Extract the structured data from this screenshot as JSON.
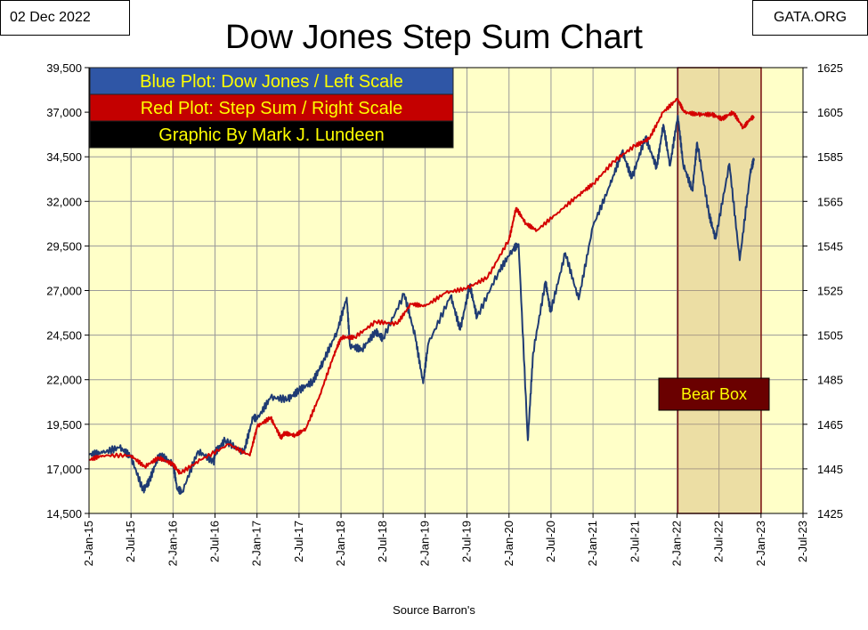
{
  "date_label": "02 Dec 2022",
  "site_label": "GATA.ORG",
  "chart_data": {
    "type": "line",
    "title": "Dow Jones Step Sum Chart",
    "source": "Source Barron's",
    "legend": [
      {
        "text": "Blue Plot: Dow Jones / Left Scale",
        "box": "#2f56a6",
        "fg": "#ffff00"
      },
      {
        "text": "Red Plot: Step Sum / Right Scale",
        "box": "#c40000",
        "fg": "#ffff00"
      },
      {
        "text": "Graphic By Mark J. Lundeen",
        "box": "#000000",
        "fg": "#ffff00"
      }
    ],
    "annotation": "Bear Box",
    "bear_box_range": [
      "2022-01-04",
      "2023-01-01"
    ],
    "background_color": "#ffffc8",
    "y_left": {
      "min": 14500,
      "max": 39500,
      "ticks": [
        "14,500",
        "17,000",
        "19,500",
        "22,000",
        "24,500",
        "27,000",
        "29,500",
        "32,000",
        "34,500",
        "37,000",
        "39,500"
      ]
    },
    "y_right": {
      "min": 1425,
      "max": 1625,
      "ticks": [
        "1425",
        "1445",
        "1465",
        "1485",
        "1505",
        "1525",
        "1545",
        "1565",
        "1585",
        "1605",
        "1625"
      ]
    },
    "x_ticks": [
      "2-Jan-15",
      "2-Jul-15",
      "2-Jan-16",
      "2-Jul-16",
      "2-Jan-17",
      "2-Jul-17",
      "2-Jan-18",
      "2-Jul-18",
      "2-Jan-19",
      "2-Jul-19",
      "2-Jan-20",
      "2-Jul-20",
      "2-Jan-21",
      "2-Jul-21",
      "2-Jan-22",
      "2-Jul-22",
      "2-Jan-23",
      "2-Jul-23"
    ],
    "grid": true,
    "series": [
      {
        "name": "Dow Jones",
        "axis": "left",
        "color": "#1f3b73",
        "points": [
          [
            "2015-01-02",
            17800
          ],
          [
            "2015-03-01",
            17900
          ],
          [
            "2015-05-15",
            18200
          ],
          [
            "2015-07-02",
            17700
          ],
          [
            "2015-08-25",
            15800
          ],
          [
            "2015-09-20",
            16300
          ],
          [
            "2015-11-03",
            17800
          ],
          [
            "2016-01-02",
            17300
          ],
          [
            "2016-01-20",
            15900
          ],
          [
            "2016-02-11",
            15700
          ],
          [
            "2016-04-20",
            18000
          ],
          [
            "2016-06-27",
            17400
          ],
          [
            "2016-07-02",
            17900
          ],
          [
            "2016-08-15",
            18600
          ],
          [
            "2016-11-04",
            17900
          ],
          [
            "2016-12-15",
            19900
          ],
          [
            "2017-01-02",
            19800
          ],
          [
            "2017-03-01",
            21000
          ],
          [
            "2017-05-15",
            20900
          ],
          [
            "2017-07-02",
            21400
          ],
          [
            "2017-09-01",
            21900
          ],
          [
            "2017-10-15",
            23000
          ],
          [
            "2017-12-15",
            24700
          ],
          [
            "2018-01-26",
            26600
          ],
          [
            "2018-02-09",
            23900
          ],
          [
            "2018-04-02",
            23700
          ],
          [
            "2018-06-01",
            24700
          ],
          [
            "2018-07-02",
            24300
          ],
          [
            "2018-10-03",
            26800
          ],
          [
            "2018-11-20",
            24400
          ],
          [
            "2018-12-24",
            21800
          ],
          [
            "2019-01-15",
            24000
          ],
          [
            "2019-04-23",
            26700
          ],
          [
            "2019-06-03",
            24800
          ],
          [
            "2019-07-15",
            27300
          ],
          [
            "2019-08-15",
            25500
          ],
          [
            "2019-11-15",
            28000
          ],
          [
            "2020-01-17",
            29300
          ],
          [
            "2020-02-12",
            29600
          ],
          [
            "2020-03-23",
            18600
          ],
          [
            "2020-04-15",
            23500
          ],
          [
            "2020-06-08",
            27500
          ],
          [
            "2020-06-30",
            25800
          ],
          [
            "2020-09-02",
            29100
          ],
          [
            "2020-10-30",
            26500
          ],
          [
            "2020-12-31",
            30600
          ],
          [
            "2021-03-15",
            32900
          ],
          [
            "2021-05-07",
            34800
          ],
          [
            "2021-06-18",
            33300
          ],
          [
            "2021-08-16",
            35600
          ],
          [
            "2021-10-04",
            33900
          ],
          [
            "2021-11-02",
            36300
          ],
          [
            "2021-12-01",
            34000
          ],
          [
            "2022-01-04",
            36800
          ],
          [
            "2022-01-27",
            34100
          ],
          [
            "2022-03-08",
            32600
          ],
          [
            "2022-03-29",
            35300
          ],
          [
            "2022-05-19",
            31300
          ],
          [
            "2022-06-17",
            29900
          ],
          [
            "2022-08-16",
            34100
          ],
          [
            "2022-09-30",
            28700
          ],
          [
            "2022-11-15",
            33600
          ],
          [
            "2022-12-01",
            34400
          ]
        ]
      },
      {
        "name": "Step Sum",
        "axis": "right",
        "color": "#d40000",
        "points": [
          [
            "2015-01-02",
            1449
          ],
          [
            "2015-03-01",
            1451
          ],
          [
            "2015-07-02",
            1451
          ],
          [
            "2015-09-01",
            1446
          ],
          [
            "2015-11-01",
            1450
          ],
          [
            "2016-01-02",
            1447
          ],
          [
            "2016-02-01",
            1443
          ],
          [
            "2016-05-01",
            1449
          ],
          [
            "2016-09-01",
            1456
          ],
          [
            "2016-12-01",
            1451
          ],
          [
            "2017-01-02",
            1464
          ],
          [
            "2017-03-01",
            1468
          ],
          [
            "2017-04-15",
            1459
          ],
          [
            "2017-05-01",
            1461
          ],
          [
            "2017-06-15",
            1460
          ],
          [
            "2017-08-01",
            1463
          ],
          [
            "2017-10-01",
            1478
          ],
          [
            "2017-12-01",
            1496
          ],
          [
            "2018-01-02",
            1504
          ],
          [
            "2018-03-01",
            1504
          ],
          [
            "2018-06-01",
            1511
          ],
          [
            "2018-09-01",
            1510
          ],
          [
            "2018-11-01",
            1519
          ],
          [
            "2019-01-02",
            1518
          ],
          [
            "2019-04-01",
            1524
          ],
          [
            "2019-07-02",
            1526
          ],
          [
            "2019-10-01",
            1531
          ],
          [
            "2020-01-02",
            1548
          ],
          [
            "2020-02-01",
            1562
          ],
          [
            "2020-03-15",
            1555
          ],
          [
            "2020-05-01",
            1552
          ],
          [
            "2020-08-01",
            1560
          ],
          [
            "2020-11-01",
            1568
          ],
          [
            "2021-01-02",
            1573
          ],
          [
            "2021-04-01",
            1583
          ],
          [
            "2021-07-02",
            1590
          ],
          [
            "2021-09-01",
            1593
          ],
          [
            "2021-11-01",
            1605
          ],
          [
            "2022-01-02",
            1611
          ],
          [
            "2022-02-01",
            1605
          ],
          [
            "2022-04-01",
            1604
          ],
          [
            "2022-06-01",
            1604
          ],
          [
            "2022-07-15",
            1602
          ],
          [
            "2022-09-01",
            1605
          ],
          [
            "2022-10-15",
            1598
          ],
          [
            "2022-11-15",
            1602
          ],
          [
            "2022-12-01",
            1603
          ]
        ]
      }
    ]
  }
}
